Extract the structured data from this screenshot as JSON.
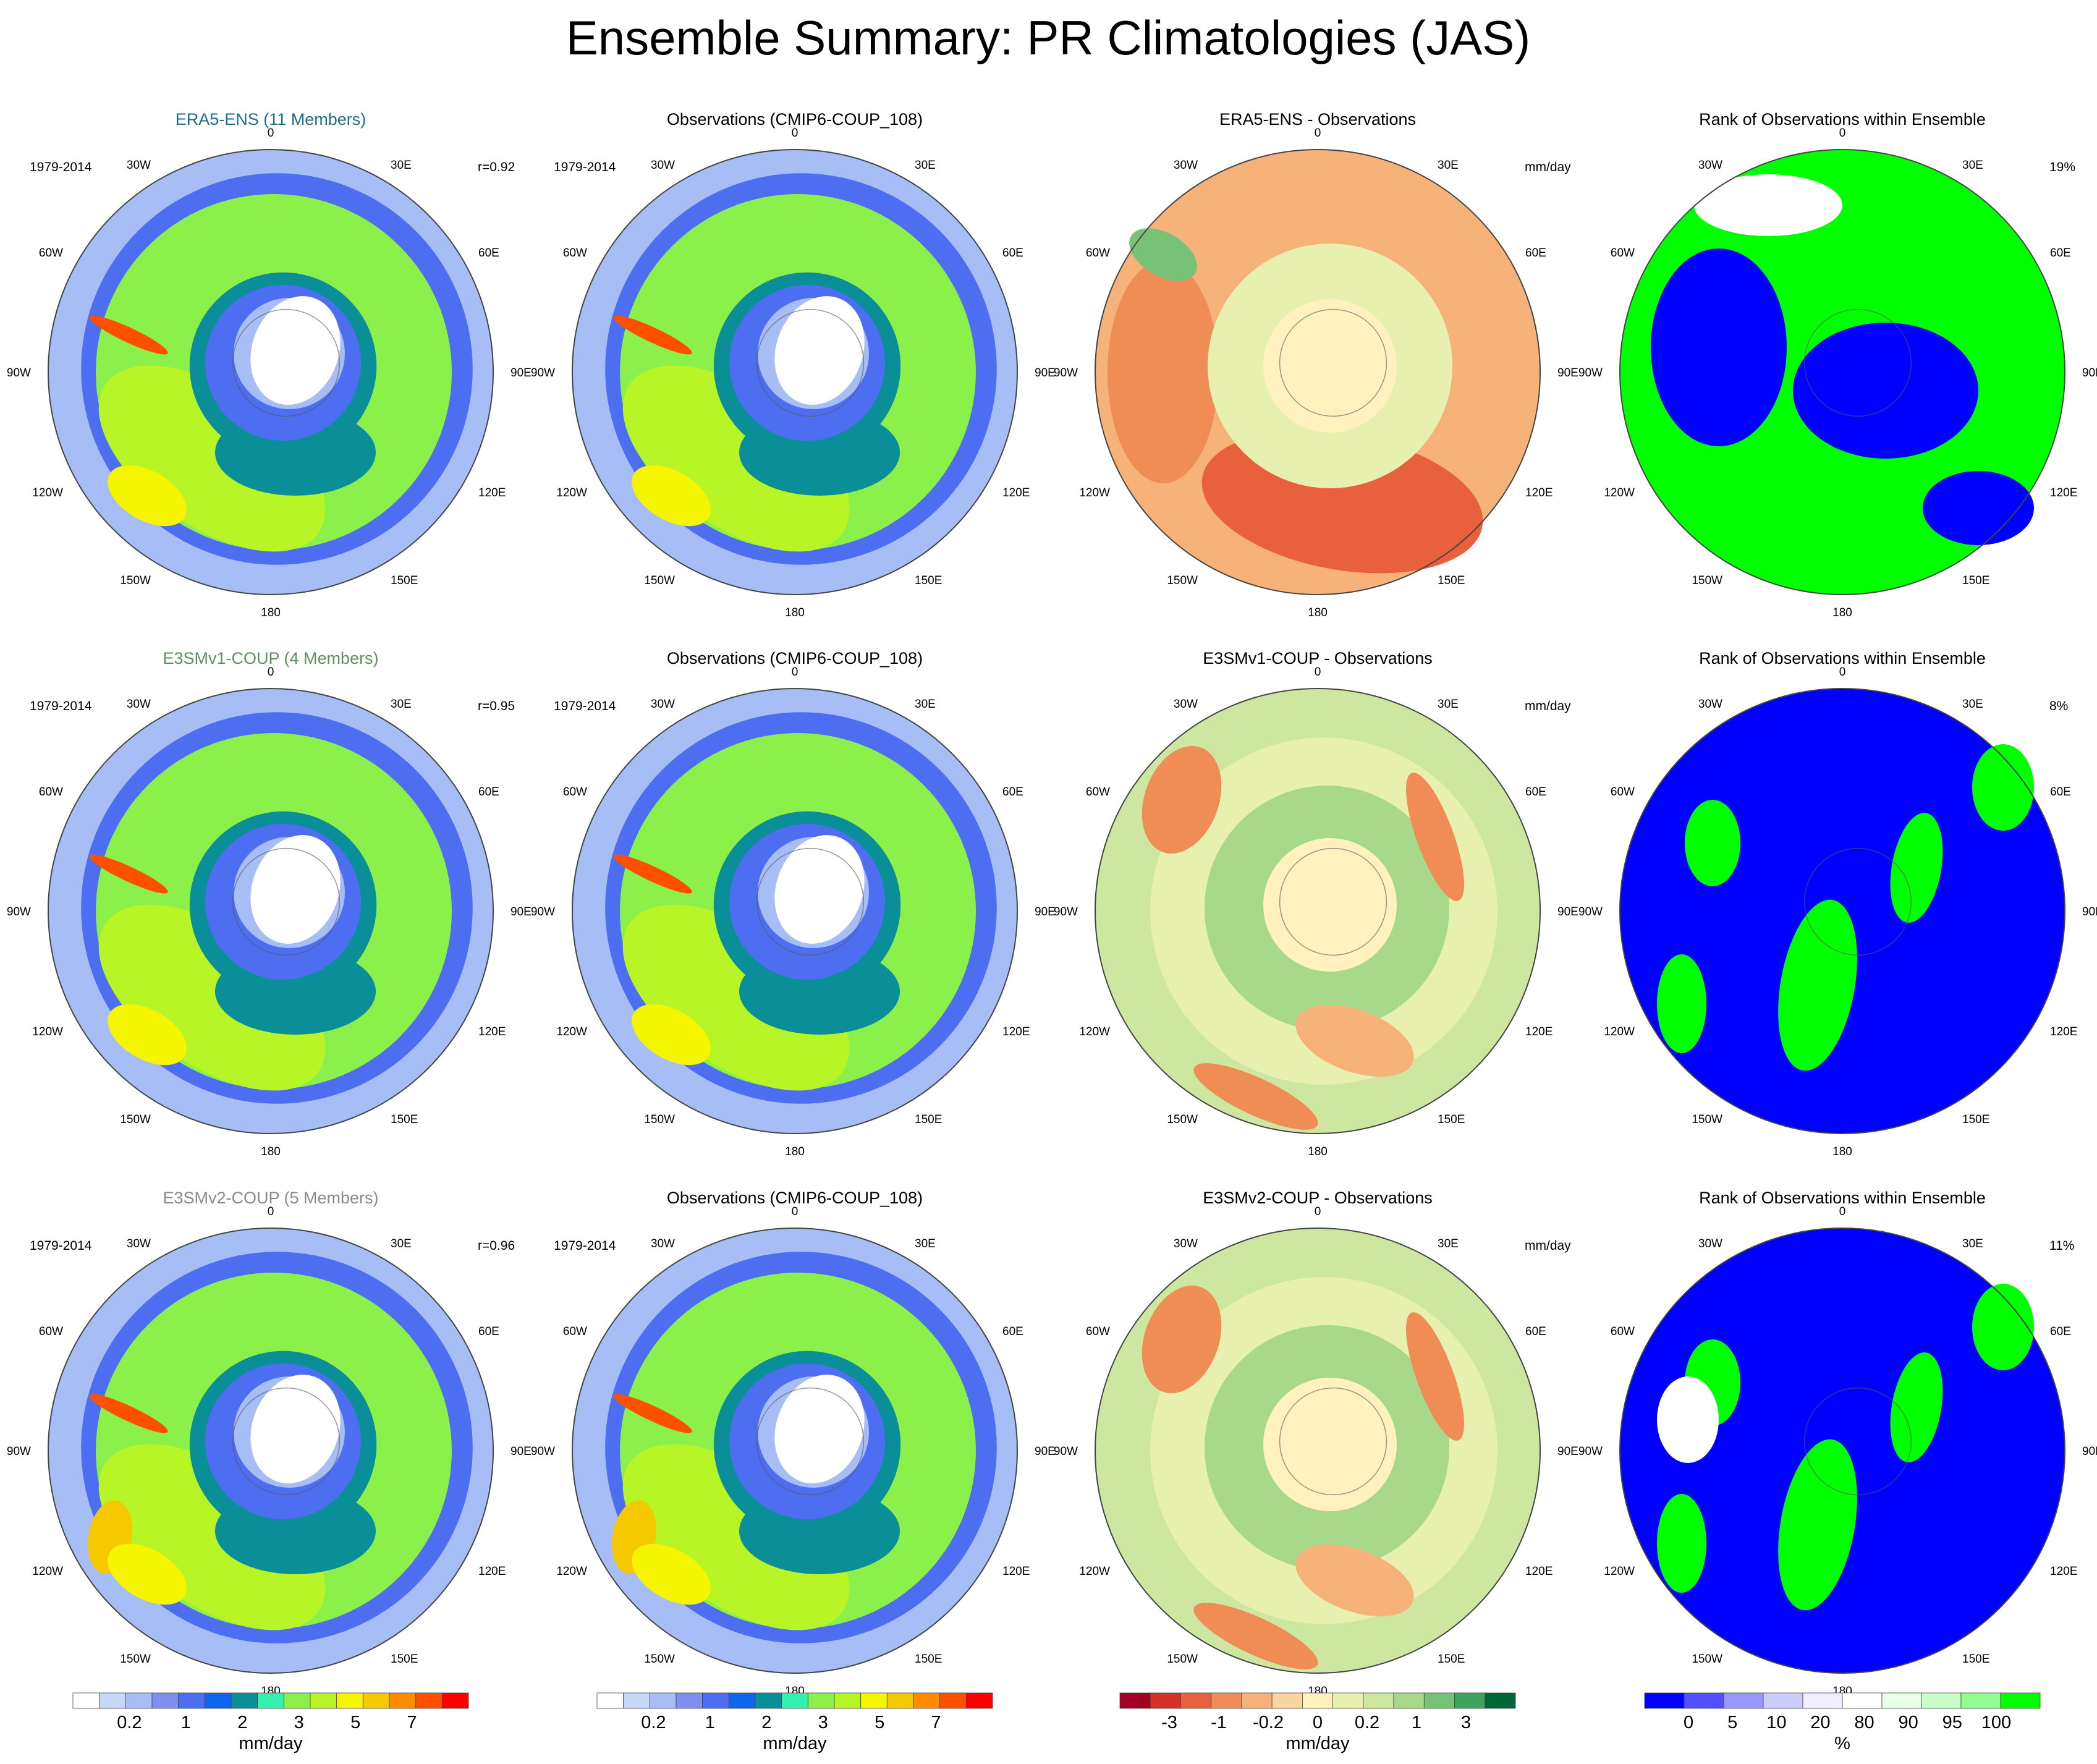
{
  "title": "Ensemble Summary: PR Climatologies (JAS)",
  "colors": {
    "ensemble_titles": [
      "#1f6e8c",
      "#5e8f5e",
      "#8a8a8a"
    ],
    "pr_levels": [
      "#ffffff",
      "#c6d8f7",
      "#a6bdf5",
      "#7f8ff0",
      "#4d6ef0",
      "#0f64f0",
      "#0a8f99",
      "#33f0b0",
      "#8cf04a",
      "#b8f526",
      "#f5f500",
      "#f5c800",
      "#ff8c00",
      "#ff5000",
      "#ff0000"
    ],
    "diff_levels": [
      "#a50026",
      "#d73027",
      "#e8603c",
      "#f08c56",
      "#f7b27a",
      "#fbd59f",
      "#fff2bf",
      "#e8f0b0",
      "#cde6a0",
      "#a8d88a",
      "#78c278",
      "#3ea35c",
      "#006837"
    ],
    "rank_levels": [
      "#0000ff",
      "#5050ff",
      "#9898ff",
      "#ccccff",
      "#f0f0ff",
      "#ffffff",
      "#e8ffe8",
      "#c8ffc8",
      "#90ff90",
      "#00ff00"
    ]
  },
  "chart_data": [
    {
      "row_label": "ERA5",
      "panels": [
        {
          "type": "polar-contour-map",
          "title": "ERA5-ENS (11 Members)",
          "period": "1979-2014",
          "stat": "r=0.92",
          "scale": "pr"
        },
        {
          "type": "polar-contour-map",
          "title": "Observations (CMIP6-COUP_108)",
          "period": "1979-2014",
          "stat": "",
          "scale": "pr"
        },
        {
          "type": "polar-contour-map",
          "title": "ERA5-ENS - Observations",
          "period": "",
          "stat": "mm/day",
          "scale": "diff"
        },
        {
          "type": "polar-contour-map",
          "title": "Rank of Observations within Ensemble",
          "period": "",
          "stat": "19%",
          "scale": "rank"
        }
      ]
    },
    {
      "row_label": "E3SMv1",
      "panels": [
        {
          "type": "polar-contour-map",
          "title": "E3SMv1-COUP (4 Members)",
          "period": "1979-2014",
          "stat": "r=0.95",
          "scale": "pr"
        },
        {
          "type": "polar-contour-map",
          "title": "Observations (CMIP6-COUP_108)",
          "period": "1979-2014",
          "stat": "",
          "scale": "pr"
        },
        {
          "type": "polar-contour-map",
          "title": "E3SMv1-COUP - Observations",
          "period": "",
          "stat": "mm/day",
          "scale": "diff"
        },
        {
          "type": "polar-contour-map",
          "title": "Rank of Observations within Ensemble",
          "period": "",
          "stat": "8%",
          "scale": "rank"
        }
      ]
    },
    {
      "row_label": "E3SMv2",
      "panels": [
        {
          "type": "polar-contour-map",
          "title": "E3SMv2-COUP (5 Members)",
          "period": "1979-2014",
          "stat": "r=0.96",
          "scale": "pr"
        },
        {
          "type": "polar-contour-map",
          "title": "Observations (CMIP6-COUP_108)",
          "period": "1979-2014",
          "stat": "",
          "scale": "pr"
        },
        {
          "type": "polar-contour-map",
          "title": "E3SMv2-COUP - Observations",
          "period": "",
          "stat": "mm/day",
          "scale": "diff"
        },
        {
          "type": "polar-contour-map",
          "title": "Rank of Observations within Ensemble",
          "period": "",
          "stat": "11%",
          "scale": "rank"
        }
      ]
    }
  ],
  "longitude_labels": [
    "0",
    "30E",
    "60E",
    "90E",
    "120E",
    "150E",
    "180",
    "150W",
    "120W",
    "90W",
    "60W",
    "30W"
  ],
  "colorbars": [
    {
      "scale": "pr",
      "tick_labels": [
        "0.2",
        "1",
        "2",
        "3",
        "5",
        "7"
      ],
      "unit": "mm/day"
    },
    {
      "scale": "pr",
      "tick_labels": [
        "0.2",
        "1",
        "2",
        "3",
        "5",
        "7"
      ],
      "unit": "mm/day"
    },
    {
      "scale": "diff",
      "tick_labels": [
        "-3",
        "-1",
        "-0.2",
        "0",
        "0.2",
        "1",
        "3"
      ],
      "unit": "mm/day"
    },
    {
      "scale": "rank",
      "tick_labels": [
        "0",
        "5",
        "10",
        "20",
        "80",
        "90",
        "95",
        "100"
      ],
      "unit": "%"
    }
  ]
}
